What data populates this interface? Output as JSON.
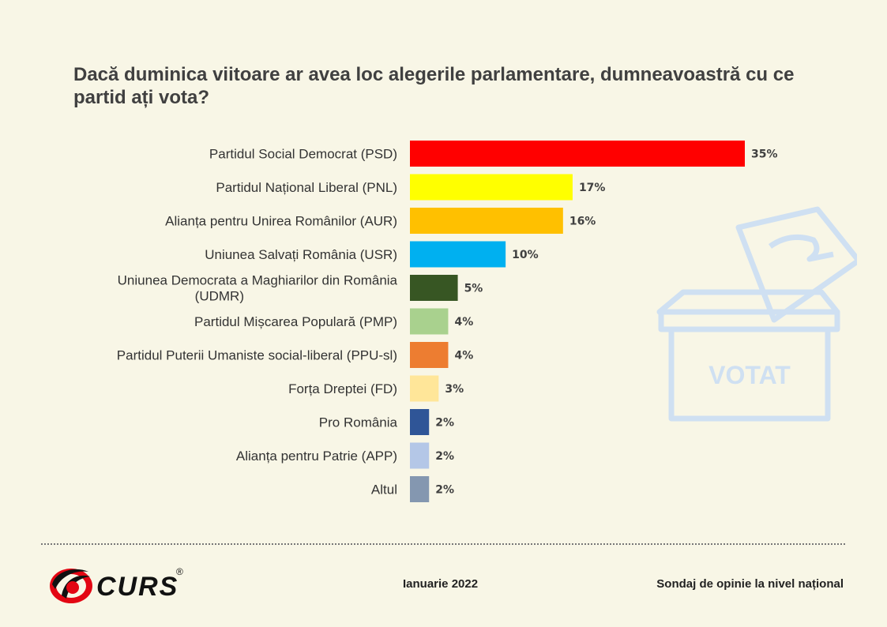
{
  "title": "Dacă duminica viitoare ar avea loc alegerile parlamentare, dumneavoastră cu ce partid ați vota?",
  "chart_data": {
    "type": "bar",
    "orientation": "horizontal",
    "title": "Dacă duminica viitoare ar avea loc alegerile parlamentare, dumneavoastră cu ce partid ați vota?",
    "categories": [
      [
        "Partidul Social Democrat (PSD)"
      ],
      [
        "Partidul Național Liberal (PNL)"
      ],
      [
        "Alianța pentru Unirea Românilor (AUR)"
      ],
      [
        "Uniunea Salvați România (USR)"
      ],
      [
        "Uniunea Democrata a Maghiarilor din România",
        "(UDMR)"
      ],
      [
        "Partidul Mișcarea Populară (PMP)"
      ],
      [
        "Partidul Puterii Umaniste social-liberal (PPU-sl)"
      ],
      [
        "Forța Dreptei (FD)"
      ],
      [
        "Pro România"
      ],
      [
        "Alianța pentru Patrie (APP)"
      ],
      [
        "Altul"
      ]
    ],
    "values": [
      35,
      17,
      16,
      10,
      5,
      4,
      4,
      3,
      2,
      2,
      2
    ],
    "value_labels": [
      "35%",
      "17%",
      "16%",
      "10%",
      "5%",
      "4%",
      "4%",
      "3%",
      "2%",
      "2%",
      "2%"
    ],
    "colors": [
      "#ff0000",
      "#ffff00",
      "#ffc000",
      "#00b0f0",
      "#375623",
      "#a9d18e",
      "#ed7d31",
      "#ffe699",
      "#2f5597",
      "#b4c7e7",
      "#8497b0"
    ],
    "xlim": [
      0,
      35
    ],
    "grid": false,
    "legend": "none"
  },
  "decoration": {
    "ballot_box_label": "VOTAT",
    "ballot_color": "#c9dcf0"
  },
  "footer": {
    "logo_text": "CURS",
    "logo_mark": "®",
    "date": "Ianuarie 2022",
    "source": "Sondaj de opinie la nivel național"
  }
}
